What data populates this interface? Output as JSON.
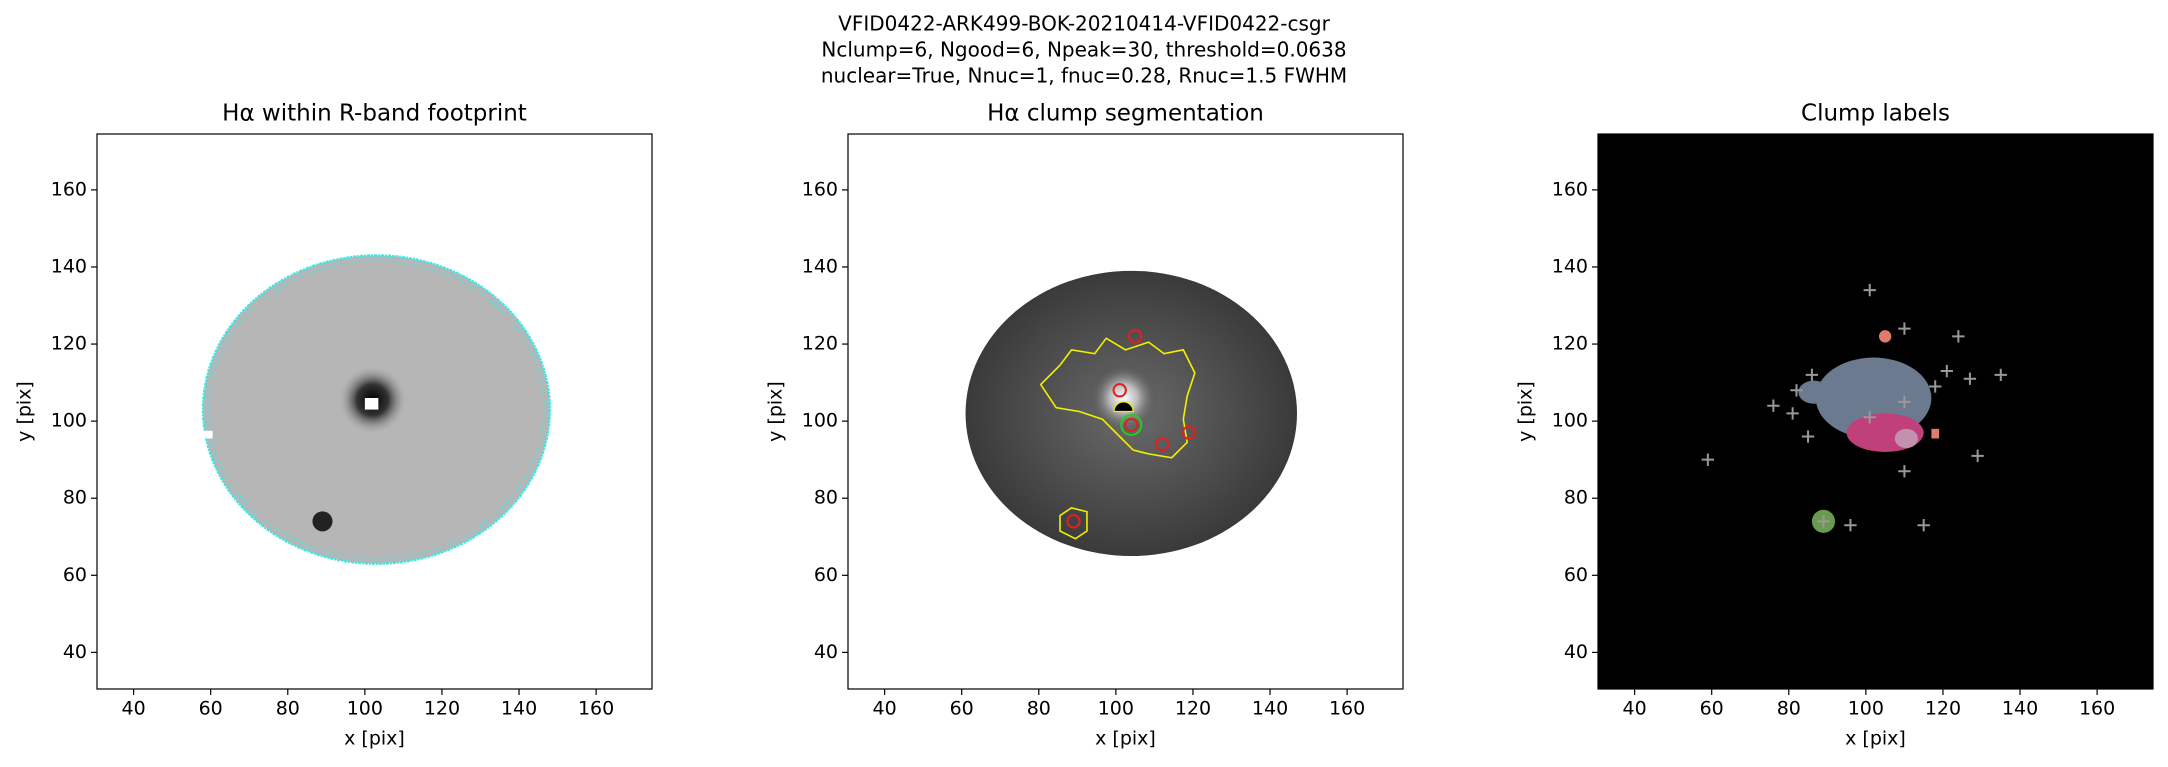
{
  "suptitle": [
    "VFID0422-ARK499-BOK-20210414-VFID0422-csgr",
    "Nclump=6, Ngood=6, Npeak=30, threshold=0.0638",
    "nuclear=True, Nnuc=1, fnuc=0.28, Rnuc=1.5 FWHM"
  ],
  "chart_data": [
    {
      "type": "image",
      "title": "Hα within R-band footprint",
      "xlabel": "x [pix]",
      "ylabel": "y [pix]",
      "xlim": [
        30.5,
        174.5
      ],
      "ylim": [
        30.5,
        174.5
      ],
      "xticks": [
        40,
        60,
        80,
        100,
        120,
        140,
        160
      ],
      "yticks": [
        40,
        60,
        80,
        100,
        120,
        140,
        160
      ]
    },
    {
      "type": "image",
      "title": "Hα clump segmentation",
      "xlabel": "x [pix]",
      "ylabel": "y [pix]",
      "xlim": [
        30.5,
        174.5
      ],
      "ylim": [
        30.5,
        174.5
      ],
      "xticks": [
        40,
        60,
        80,
        100,
        120,
        140,
        160
      ],
      "yticks": [
        40,
        60,
        80,
        100,
        120,
        140,
        160
      ]
    },
    {
      "type": "image",
      "title": "Clump labels",
      "xlabel": "x [pix]",
      "ylabel": "y [pix]",
      "xlim": [
        30.5,
        174.5
      ],
      "ylim": [
        30.5,
        174.5
      ],
      "xticks": [
        40,
        60,
        80,
        100,
        120,
        140,
        160
      ],
      "yticks": [
        40,
        60,
        80,
        100,
        120,
        140,
        160
      ]
    }
  ]
}
